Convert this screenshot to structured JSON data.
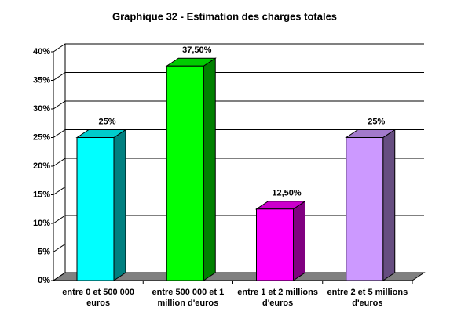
{
  "chart_data": {
    "type": "bar3d",
    "title": "Graphique 32 - Estimation des charges totales",
    "categories": [
      "entre 0 et 500 000 euros",
      "entre 500 000 et 1 million d'euros",
      "entre 1 et 2 millions d'euros",
      "entre 2 et 5 millions d'euros"
    ],
    "values": [
      25,
      37.5,
      12.5,
      25
    ],
    "value_labels": [
      "25%",
      "37,50%",
      "12,50%",
      "25%"
    ],
    "colors": [
      "#00ffff",
      "#00ff00",
      "#ff00ff",
      "#cc99ff"
    ],
    "ylim": [
      0,
      40
    ],
    "yticks": [
      {
        "value": 0,
        "label": "0%"
      },
      {
        "value": 5,
        "label": "5%"
      },
      {
        "value": 10,
        "label": "10%"
      },
      {
        "value": 15,
        "label": "15%"
      },
      {
        "value": 20,
        "label": "20%"
      },
      {
        "value": 25,
        "label": "25%"
      },
      {
        "value": 30,
        "label": "30%"
      },
      {
        "value": 35,
        "label": "35%"
      },
      {
        "value": 40,
        "label": "40%"
      }
    ],
    "grid": true
  }
}
